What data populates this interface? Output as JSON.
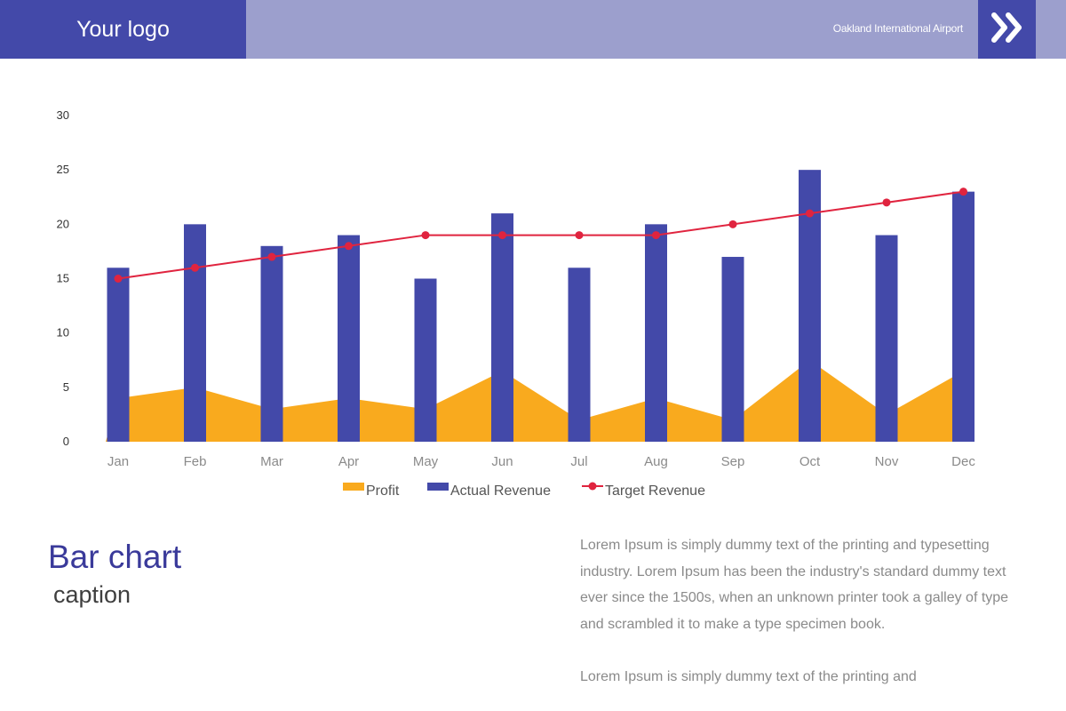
{
  "header": {
    "logo": "Your logo",
    "company": "Oakland International Airport",
    "nav_icon": "double-chevron-right-icon",
    "colors": {
      "primary": "#4349a9",
      "band": "#9c9fcd"
    }
  },
  "chart_data": {
    "type": "bar",
    "categories": [
      "Jan",
      "Feb",
      "Mar",
      "Apr",
      "May",
      "Jun",
      "Jul",
      "Aug",
      "Sep",
      "Oct",
      "Nov",
      "Dec"
    ],
    "yticks": [
      "0",
      "5",
      "10",
      "15",
      "20",
      "25",
      "30"
    ],
    "ylim": [
      0,
      30
    ],
    "grid": false,
    "legend_position": "bottom",
    "series": [
      {
        "name": "Profit",
        "type": "area",
        "color": "#f9aa1e",
        "values": [
          4,
          5,
          3,
          4,
          3,
          6.5,
          2,
          4,
          2,
          7.5,
          2.5,
          6.5
        ]
      },
      {
        "name": "Actual Revenue",
        "type": "bar",
        "color": "#4349a9",
        "values": [
          16,
          20,
          18,
          19,
          15,
          21,
          16,
          20,
          17,
          25,
          19,
          23
        ]
      },
      {
        "name": "Target Revenue",
        "type": "line",
        "color": "#e0243f",
        "values": [
          15,
          16,
          17,
          18,
          19,
          19,
          19,
          19,
          20,
          21,
          22,
          23
        ]
      }
    ]
  },
  "caption": {
    "title": "Bar chart",
    "subtitle": "caption"
  },
  "body": {
    "para1": "Lorem Ipsum is simply dummy text of the printing and typesetting industry. Lorem Ipsum has been the industry's standard dummy text ever since the 1500s, when an unknown printer took a galley of type and scrambled it to make a type specimen book.",
    "para2": "Lorem Ipsum is simply dummy text of the printing and"
  }
}
